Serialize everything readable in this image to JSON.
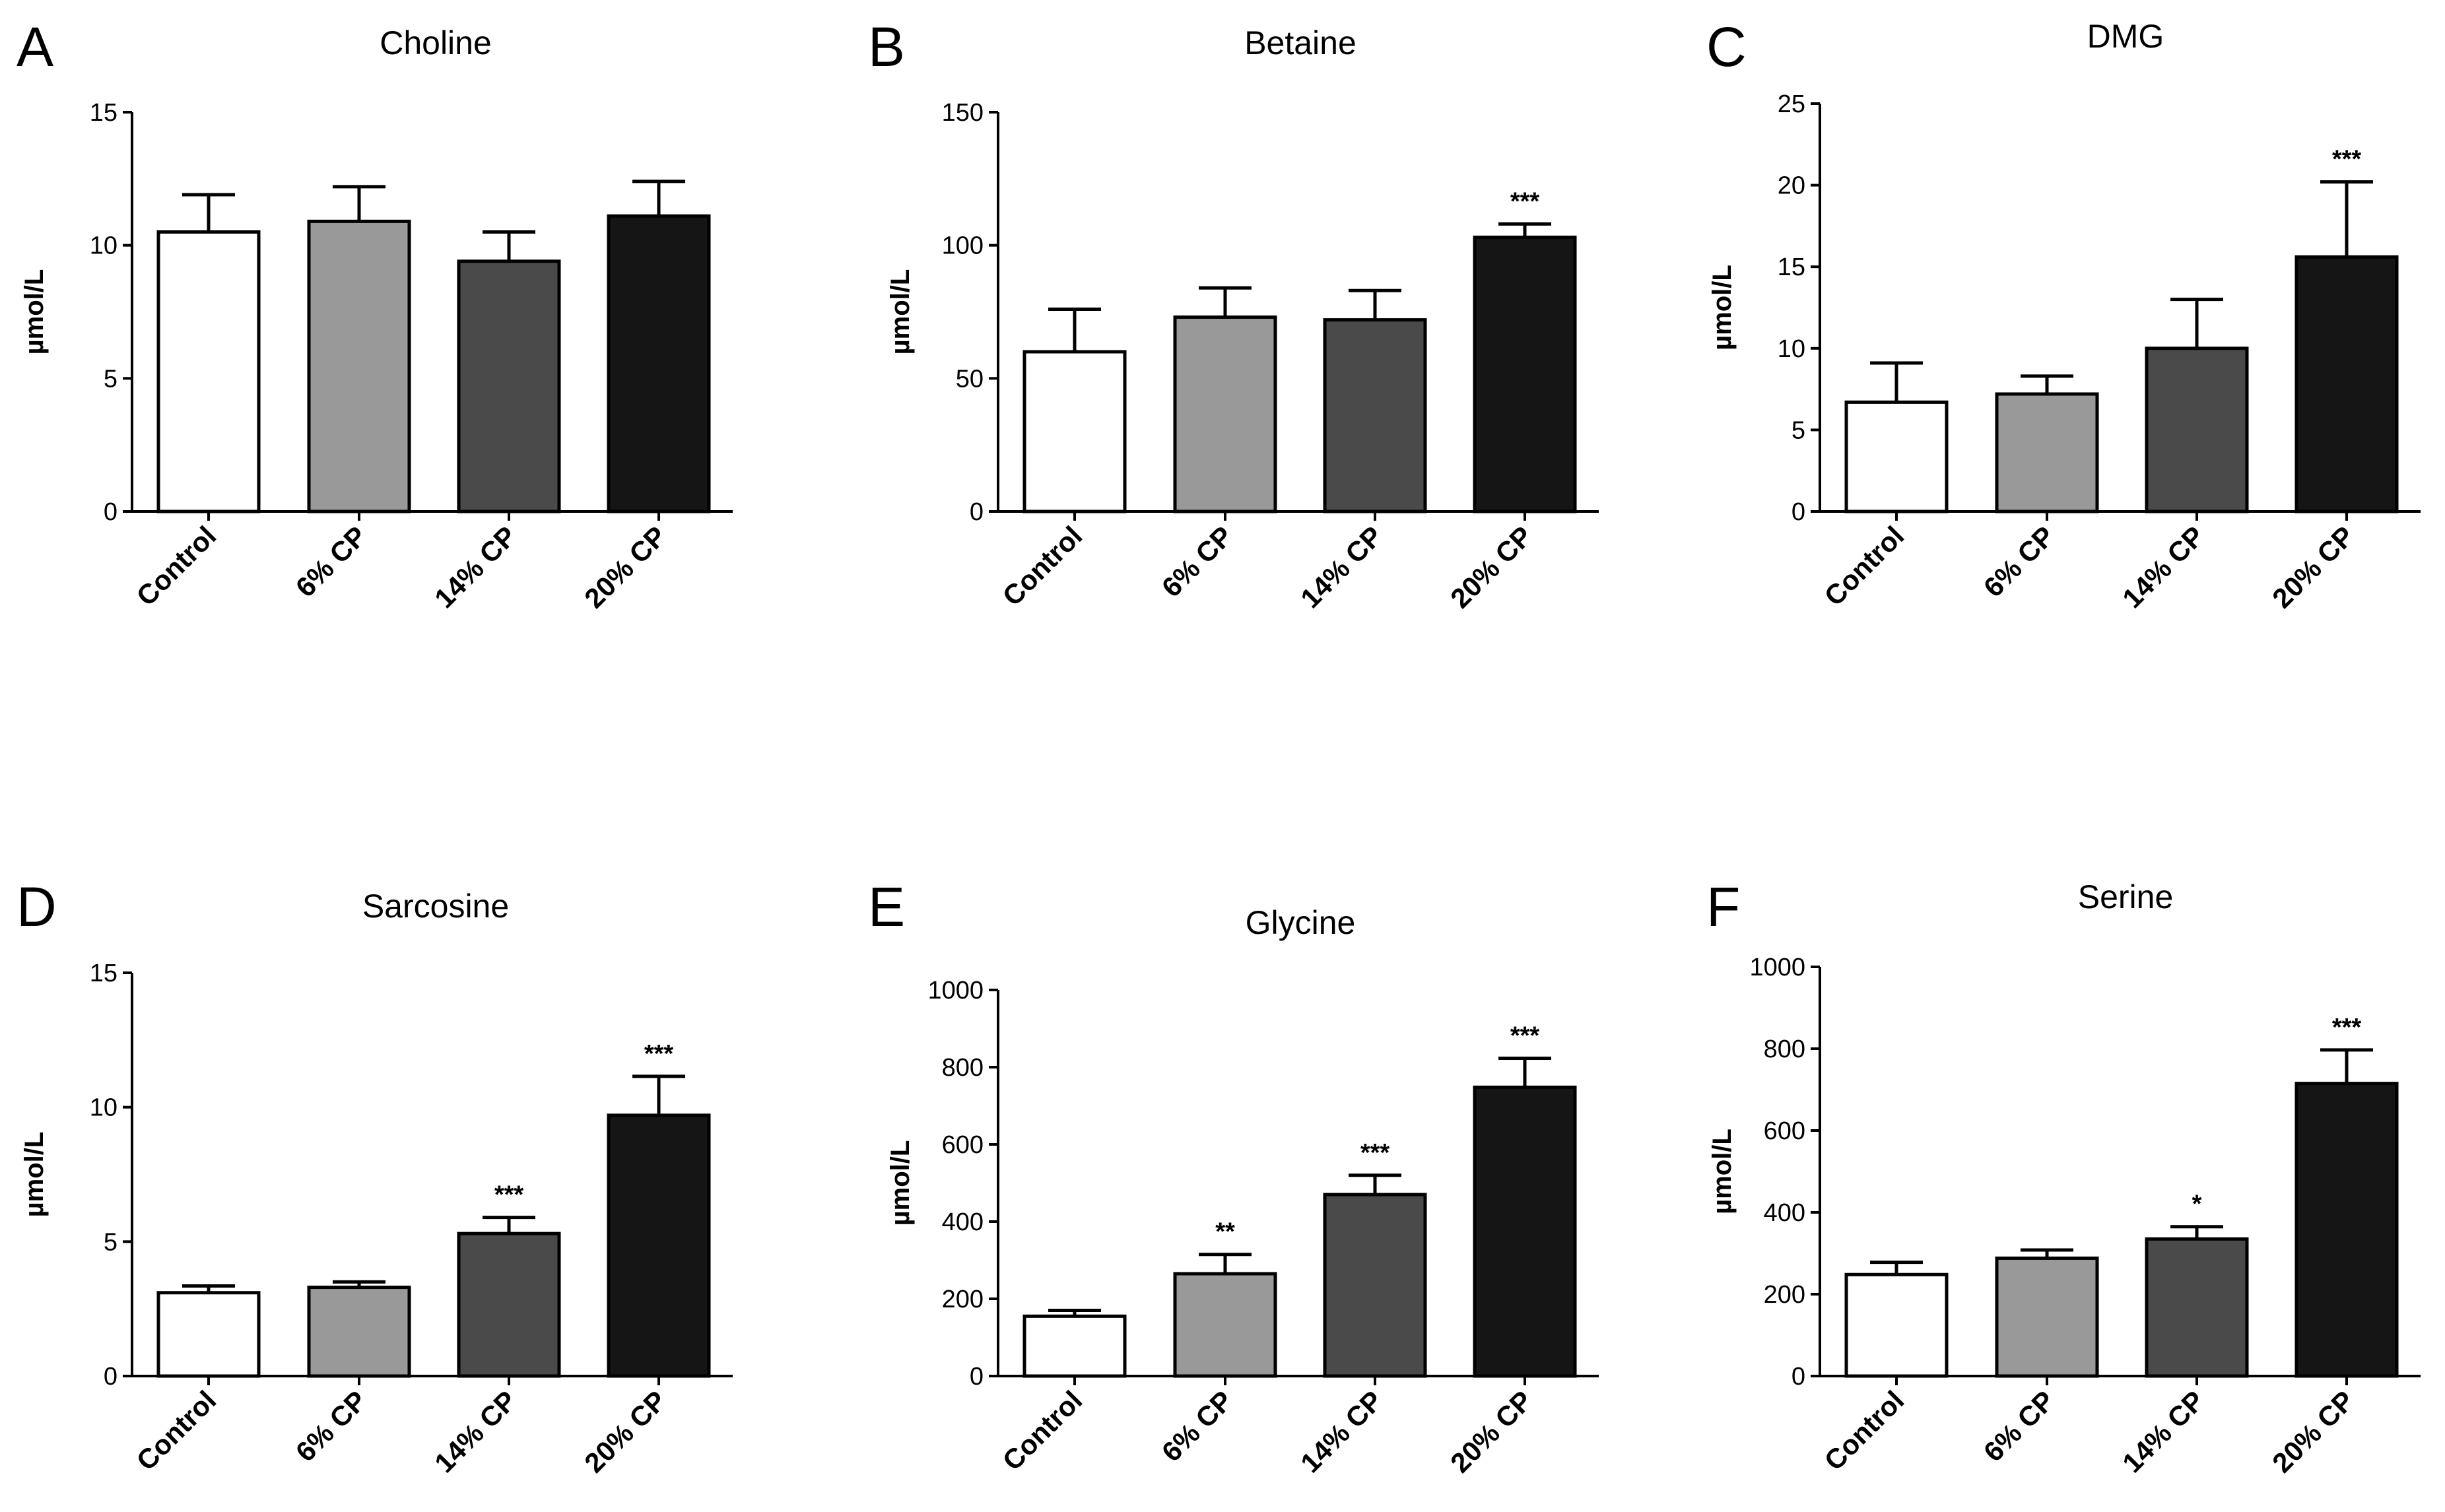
{
  "figure": {
    "categories": [
      "Control",
      "6% CP",
      "14% CP",
      "20% CP"
    ],
    "bar_colors": [
      "#ffffff",
      "#999999",
      "#4a4a4a",
      "#151515"
    ]
  },
  "chart_data": [
    {
      "panel": "A",
      "type": "bar",
      "title": "Choline",
      "ylabel": "µmol/L",
      "categories": [
        "Control",
        "6% CP",
        "14% CP",
        "20% CP"
      ],
      "values": [
        10.5,
        10.9,
        9.4,
        11.1
      ],
      "errors": [
        1.4,
        1.3,
        1.1,
        1.3
      ],
      "significance": [
        "",
        "",
        "",
        ""
      ],
      "ylim": [
        0,
        15
      ],
      "yticks": [
        0,
        5,
        10,
        15
      ]
    },
    {
      "panel": "B",
      "type": "bar",
      "title": "Betaine",
      "ylabel": "µmol/L",
      "categories": [
        "Control",
        "6% CP",
        "14% CP",
        "20% CP"
      ],
      "values": [
        60,
        73,
        72,
        103
      ],
      "errors": [
        16,
        11,
        11,
        5
      ],
      "significance": [
        "",
        "",
        "",
        "***"
      ],
      "ylim": [
        0,
        150
      ],
      "yticks": [
        0,
        50,
        100,
        150
      ]
    },
    {
      "panel": "C",
      "type": "bar",
      "title": "DMG",
      "ylabel": "µmol/L",
      "categories": [
        "Control",
        "6% CP",
        "14% CP",
        "20% CP"
      ],
      "values": [
        6.7,
        7.2,
        10.0,
        15.6
      ],
      "errors": [
        2.4,
        1.1,
        3.0,
        4.6
      ],
      "significance": [
        "",
        "",
        "",
        "***"
      ],
      "ylim": [
        0,
        25
      ],
      "yticks": [
        0,
        5,
        10,
        15,
        20,
        25
      ]
    },
    {
      "panel": "D",
      "type": "bar",
      "title": "Sarcosine",
      "ylabel": "µmol/L",
      "categories": [
        "Control",
        "6% CP",
        "14% CP",
        "20% CP"
      ],
      "values": [
        3.1,
        3.3,
        5.3,
        9.7
      ],
      "errors": [
        0.25,
        0.2,
        0.6,
        1.45
      ],
      "significance": [
        "",
        "",
        "***",
        "***"
      ],
      "ylim": [
        0,
        15
      ],
      "yticks": [
        0,
        5,
        10,
        15
      ]
    },
    {
      "panel": "E",
      "type": "bar",
      "title": "Glycine",
      "ylabel": "µmol/L",
      "categories": [
        "Control",
        "6% CP",
        "14% CP",
        "20% CP"
      ],
      "values": [
        155,
        265,
        470,
        748
      ],
      "errors": [
        15,
        50,
        50,
        75
      ],
      "significance": [
        "",
        "**",
        "***",
        "***"
      ],
      "ylim": [
        0,
        1000
      ],
      "yticks": [
        0,
        200,
        400,
        600,
        800,
        1000
      ]
    },
    {
      "panel": "F",
      "type": "bar",
      "title": "Serine",
      "ylabel": "µmol/L",
      "categories": [
        "Control",
        "6% CP",
        "14% CP",
        "20% CP"
      ],
      "values": [
        248,
        288,
        335,
        715
      ],
      "errors": [
        30,
        20,
        30,
        82
      ],
      "significance": [
        "",
        "",
        "*",
        "***"
      ],
      "ylim": [
        0,
        1000
      ],
      "yticks": [
        0,
        200,
        400,
        600,
        800,
        1000
      ]
    }
  ]
}
